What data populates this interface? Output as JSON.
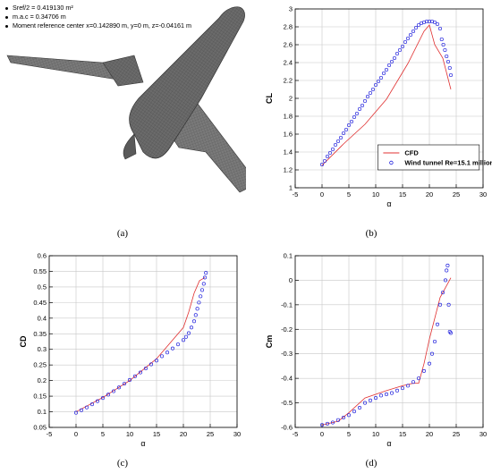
{
  "panel_a": {
    "notes": [
      "Sref/2 = 0.419130 m²",
      "m.a.c = 0.34706 m",
      "Moment reference center x=0.142890 m, y=0 m, z=-0.04161 m"
    ]
  },
  "captions": [
    "(a)",
    "(b)",
    "(c)",
    "(d)"
  ],
  "colors": {
    "cfd": "#e03030",
    "wt": "#2222dd",
    "mesh": "#666666"
  },
  "chart_data": [
    {
      "type": "line",
      "id": "b",
      "xlabel": "α",
      "ylabel": "CL",
      "xlim": [
        -5,
        30
      ],
      "ylim": [
        1,
        3
      ],
      "xticks": [
        -5,
        0,
        5,
        10,
        15,
        20,
        25,
        30
      ],
      "yticks": [
        1,
        1.2,
        1.4,
        1.6,
        1.8,
        2,
        2.2,
        2.4,
        2.6,
        2.8,
        3
      ],
      "grid": true,
      "legend": "bottom-right",
      "series": [
        {
          "name": "CFD",
          "style": "line",
          "x": [
            0,
            4,
            8,
            12,
            16,
            19,
            20,
            21,
            22.5,
            24
          ],
          "y": [
            1.25,
            1.49,
            1.71,
            1.99,
            2.39,
            2.75,
            2.82,
            2.6,
            2.45,
            2.1
          ]
        },
        {
          "name": "Wind tunnel Re=15.1 million",
          "style": "scatter",
          "x": [
            0,
            0.5,
            1,
            1.5,
            2,
            2.5,
            3,
            3.5,
            4,
            4.5,
            5,
            5.5,
            6,
            6.5,
            7,
            7.5,
            8,
            8.5,
            9,
            9.5,
            10,
            10.5,
            11,
            11.5,
            12,
            12.5,
            13,
            13.5,
            14,
            14.5,
            15,
            15.5,
            16,
            16.5,
            17,
            17.5,
            18,
            18.5,
            19,
            19.5,
            20,
            20.5,
            21,
            21.5,
            22,
            22.3,
            22.6,
            22.9,
            23.2,
            23.5,
            23.8,
            24
          ],
          "y": [
            1.26,
            1.3,
            1.35,
            1.39,
            1.43,
            1.48,
            1.52,
            1.56,
            1.61,
            1.65,
            1.7,
            1.74,
            1.79,
            1.83,
            1.88,
            1.92,
            1.97,
            2.02,
            2.06,
            2.1,
            2.15,
            2.19,
            2.23,
            2.28,
            2.32,
            2.37,
            2.41,
            2.45,
            2.5,
            2.54,
            2.58,
            2.63,
            2.67,
            2.71,
            2.75,
            2.79,
            2.82,
            2.84,
            2.85,
            2.86,
            2.86,
            2.86,
            2.85,
            2.83,
            2.78,
            2.66,
            2.6,
            2.54,
            2.47,
            2.41,
            2.34,
            2.26
          ]
        }
      ]
    },
    {
      "type": "line",
      "id": "c",
      "xlabel": "α",
      "ylabel": "CD",
      "xlim": [
        -5,
        30
      ],
      "ylim": [
        0.05,
        0.6
      ],
      "xticks": [
        -5,
        0,
        5,
        10,
        15,
        20,
        25,
        30
      ],
      "yticks": [
        0.05,
        0.1,
        0.15,
        0.2,
        0.25,
        0.3,
        0.35,
        0.4,
        0.45,
        0.5,
        0.55,
        0.6
      ],
      "grid": true,
      "legend": "none",
      "series": [
        {
          "name": "CFD",
          "style": "line",
          "x": [
            0,
            5,
            10,
            15,
            20,
            21,
            22,
            23,
            24
          ],
          "y": [
            0.1,
            0.146,
            0.2,
            0.27,
            0.37,
            0.42,
            0.48,
            0.52,
            0.53
          ]
        },
        {
          "name": "Wind tunnel Re=15.1 million",
          "style": "scatter",
          "x": [
            0,
            1,
            2,
            3,
            4,
            5,
            6,
            7,
            8,
            9,
            10,
            11,
            12,
            13,
            14,
            15,
            16,
            17,
            18,
            19,
            20,
            20.5,
            21,
            21.5,
            22,
            22.3,
            22.6,
            22.9,
            23.2,
            23.5,
            23.8,
            24,
            24.2
          ],
          "y": [
            0.097,
            0.105,
            0.114,
            0.124,
            0.134,
            0.144,
            0.155,
            0.166,
            0.178,
            0.19,
            0.202,
            0.214,
            0.226,
            0.239,
            0.252,
            0.264,
            0.278,
            0.29,
            0.303,
            0.316,
            0.33,
            0.34,
            0.352,
            0.37,
            0.39,
            0.41,
            0.43,
            0.45,
            0.47,
            0.49,
            0.51,
            0.53,
            0.545
          ]
        }
      ]
    },
    {
      "type": "line",
      "id": "d",
      "xlabel": "α",
      "ylabel": "Cm",
      "xlim": [
        -5,
        30
      ],
      "ylim": [
        -0.6,
        0.1
      ],
      "xticks": [
        -5,
        0,
        5,
        10,
        15,
        20,
        25,
        30
      ],
      "yticks": [
        -0.6,
        -0.5,
        -0.4,
        -0.3,
        -0.2,
        -0.1,
        0,
        0.1
      ],
      "grid": true,
      "legend": "none",
      "series": [
        {
          "name": "CFD",
          "style": "line",
          "x": [
            0,
            3,
            5,
            8,
            12,
            15,
            17,
            18,
            19,
            20,
            22,
            24
          ],
          "y": [
            -0.59,
            -0.575,
            -0.54,
            -0.48,
            -0.45,
            -0.43,
            -0.42,
            -0.42,
            -0.34,
            -0.24,
            -0.07,
            0.01
          ]
        },
        {
          "name": "Wind tunnel Re=15.1 million",
          "style": "scatter",
          "x": [
            0,
            1,
            2,
            3,
            4,
            5,
            6,
            7,
            8,
            9,
            10,
            11,
            12,
            13,
            14,
            15,
            16,
            17,
            18,
            19,
            20,
            20.5,
            21,
            21.5,
            22,
            22.5,
            23,
            23.2,
            23.4,
            23.6,
            23.8,
            24
          ],
          "y": [
            -0.59,
            -0.585,
            -0.58,
            -0.57,
            -0.56,
            -0.55,
            -0.535,
            -0.52,
            -0.5,
            -0.49,
            -0.48,
            -0.47,
            -0.465,
            -0.46,
            -0.45,
            -0.44,
            -0.43,
            -0.415,
            -0.4,
            -0.37,
            -0.34,
            -0.3,
            -0.25,
            -0.18,
            -0.1,
            -0.05,
            0.0,
            0.04,
            0.06,
            -0.1,
            -0.21,
            -0.215
          ]
        }
      ]
    }
  ]
}
